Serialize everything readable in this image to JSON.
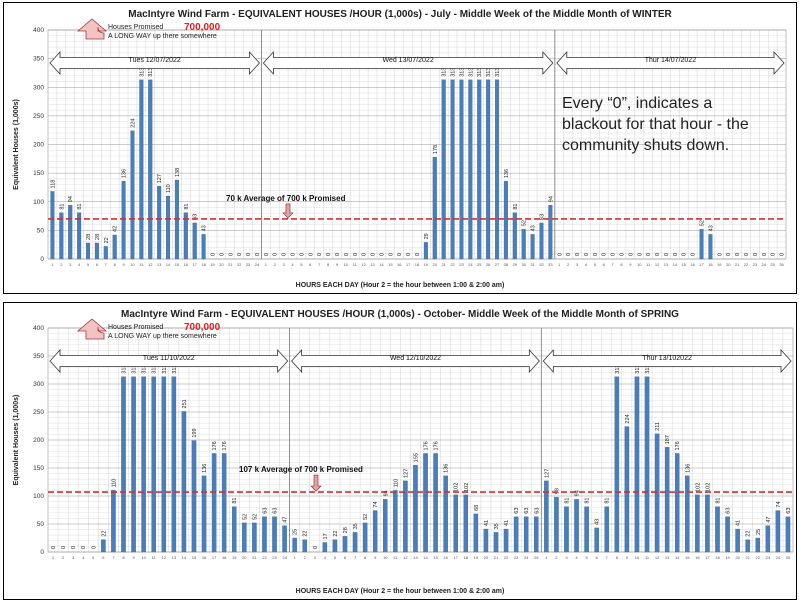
{
  "chart_data": [
    {
      "type": "bar",
      "title": "MacIntyre Wind Farm - EQUIVALENT HOUSES /HOUR (1,000s) - July - Middle Week of the Middle  Month of WINTER",
      "ylabel": "Equivalent Houses (1,000s)",
      "xlabel": "HOURS EACH DAY (Hour 2 = the hour between 1:00 & 2:00 am)",
      "ylim": [
        0,
        400
      ],
      "yticks": [
        0,
        50,
        100,
        150,
        200,
        250,
        300,
        350,
        400
      ],
      "days": [
        "Tues  12/07/2022",
        "Wed  13/07/2022",
        "Thur  14/07/2022"
      ],
      "promised_label": "Houses Promised",
      "promised_value": "700,000",
      "promised_sub": "A LONG WAY up there somewhere",
      "average": 70,
      "average_label": "70 k  Average of 700 k Promised",
      "note": "Every “0”, indicates a blackout for that hour - the community shuts down.",
      "values": [
        118,
        81,
        94,
        81,
        28,
        28,
        22,
        42,
        136,
        224,
        313,
        313,
        127,
        110,
        138,
        81,
        63,
        43,
        0,
        0,
        0,
        0,
        0,
        0,
        0,
        0,
        0,
        0,
        0,
        0,
        0,
        0,
        0,
        0,
        0,
        0,
        0,
        0,
        0,
        0,
        0,
        0,
        29,
        178,
        313,
        313,
        313,
        313,
        313,
        313,
        313,
        136,
        81,
        52,
        43,
        63,
        94,
        0,
        0,
        0,
        0,
        0,
        0,
        0,
        0,
        0,
        0,
        0,
        0,
        0,
        0,
        0,
        0,
        52,
        43,
        0,
        0,
        0,
        0,
        0,
        0,
        0,
        0
      ],
      "labels": [
        "118",
        "81",
        "94",
        "81",
        "28",
        "28",
        "22",
        "42",
        "136",
        "224",
        "313",
        "313",
        "127",
        "110",
        "138",
        "81",
        "63",
        "43",
        "0",
        "0",
        "0",
        "0",
        "0",
        "0",
        "0",
        "0",
        "0",
        "0",
        "0",
        "0",
        "0",
        "0",
        "0",
        "0",
        "0",
        "0",
        "0",
        "0",
        "0",
        "0",
        "0",
        "0",
        "29",
        "178",
        "313",
        "313",
        "313",
        "313",
        "313",
        "313",
        "313",
        "136",
        "81",
        "52",
        "43",
        "63",
        "94",
        "0",
        "0",
        "0",
        "0",
        "0",
        "0",
        "0",
        "0",
        "0",
        "0",
        "0",
        "0",
        "0",
        "0",
        "0",
        "0",
        "52",
        "43",
        "0",
        "0",
        "0",
        "0",
        "0",
        "0",
        "0",
        "0"
      ],
      "split": [
        24,
        57
      ]
    },
    {
      "type": "bar",
      "title": "MacIntyre Wind Farm - EQUIVALENT HOUSES /HOUR (1,000s) - October- Middle Week of the Middle  Month of SPRING",
      "ylabel": "Equivalent Houses (1,000s)",
      "xlabel": "HOURS EACH DAY (Hour 2 = the hour between 1:00 & 2:00 am)",
      "ylim": [
        0,
        400
      ],
      "yticks": [
        0,
        50,
        100,
        150,
        200,
        250,
        300,
        350,
        400
      ],
      "days": [
        "Tues  11/10/2022",
        "Wed  12/10/2022",
        "Thur  13/102022"
      ],
      "promised_label": "Houses Promised",
      "promised_value": "700,000",
      "promised_sub": "A LONG WAY up there somewhere",
      "average": 107,
      "average_label": "107 k   Average of 700 k Promised",
      "values": [
        0,
        0,
        0,
        0,
        0,
        22,
        110,
        313,
        313,
        313,
        313,
        313,
        313,
        251,
        199,
        136,
        176,
        176,
        81,
        52,
        52,
        63,
        63,
        47,
        25,
        22,
        0,
        17,
        22,
        28,
        35,
        52,
        74,
        94,
        110,
        127,
        155,
        176,
        176,
        136,
        102,
        102,
        68,
        41,
        35,
        41,
        63,
        63,
        63,
        127,
        98,
        81,
        94,
        81,
        43,
        81,
        313,
        224,
        313,
        313,
        211,
        187,
        176,
        136,
        102,
        102,
        81,
        63,
        41,
        22,
        25,
        47,
        74,
        63
      ],
      "labels": [
        "0",
        "0",
        "0",
        "0",
        "0",
        "22",
        "110",
        "313",
        "313",
        "313",
        "313",
        "313",
        "313",
        "251",
        "199",
        "136",
        "176",
        "176",
        "81",
        "52",
        "52",
        "63",
        "63",
        "47",
        "25",
        "22",
        "0",
        "17",
        "22",
        "28",
        "35",
        "52",
        "74",
        "94",
        "110",
        "127",
        "155",
        "176",
        "176",
        "136",
        "102",
        "102",
        "68",
        "41",
        "35",
        "41",
        "63",
        "63",
        "63",
        "127",
        "98",
        "81",
        "94",
        "81",
        "43",
        "81",
        "313",
        "224",
        "313",
        "313",
        "211",
        "187",
        "176",
        "136",
        "102",
        "102",
        "81",
        "63",
        "41",
        "22",
        "25",
        "47",
        "74",
        "63"
      ],
      "split": [
        24,
        49
      ]
    }
  ]
}
